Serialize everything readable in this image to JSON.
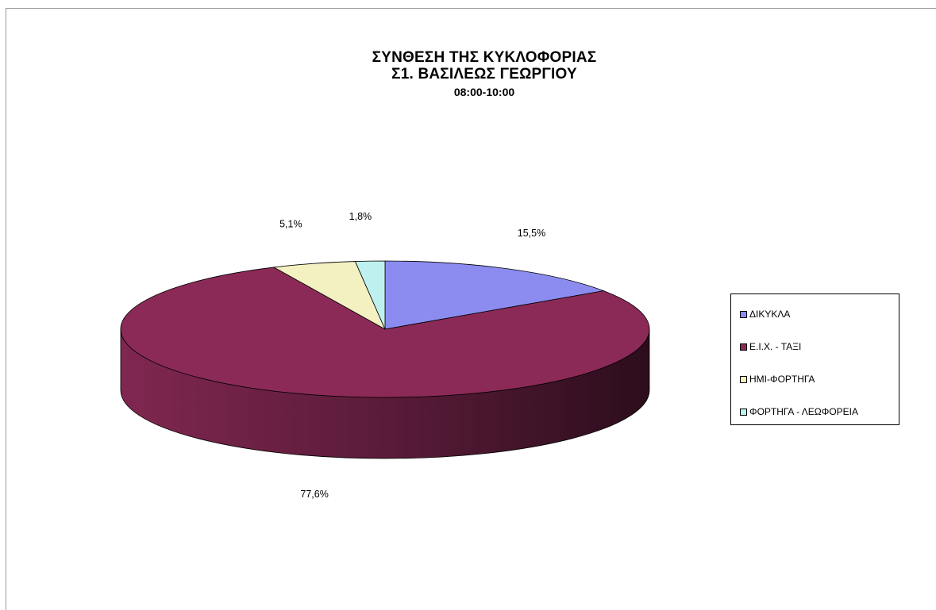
{
  "chart_data": {
    "type": "pie",
    "title": "ΣΥΝΘΕΣΗ ΤΗΣ ΚΥΚΛΟΦΟΡΙΑΣ",
    "title_line2": "Σ1. ΒΑΣΙΛΕΩΣ ΓΕΩΡΓΙΟΥ",
    "subtitle": "08:00-10:00",
    "slices": [
      {
        "name": "ΔΙΚΥΚΛΑ",
        "value": 15.5,
        "label": "15,5%",
        "color": "#8c8cf0"
      },
      {
        "name": "Ε.Ι.Χ.  - ΤΑΞΙ",
        "value": 77.6,
        "label": "77,6%",
        "color": "#8b2a57"
      },
      {
        "name": "ΗΜΙ-ΦΟΡΤΗΓΑ",
        "value": 5.1,
        "label": "5,1%",
        "color": "#f3f0c2"
      },
      {
        "name": "ΦΟΡΤΗΓΑ  - ΛΕΩΦΟΡΕΙΑ",
        "value": 1.8,
        "label": "1,8%",
        "color": "#bff0f0"
      }
    ],
    "legend_position": "right",
    "three_d": true
  }
}
